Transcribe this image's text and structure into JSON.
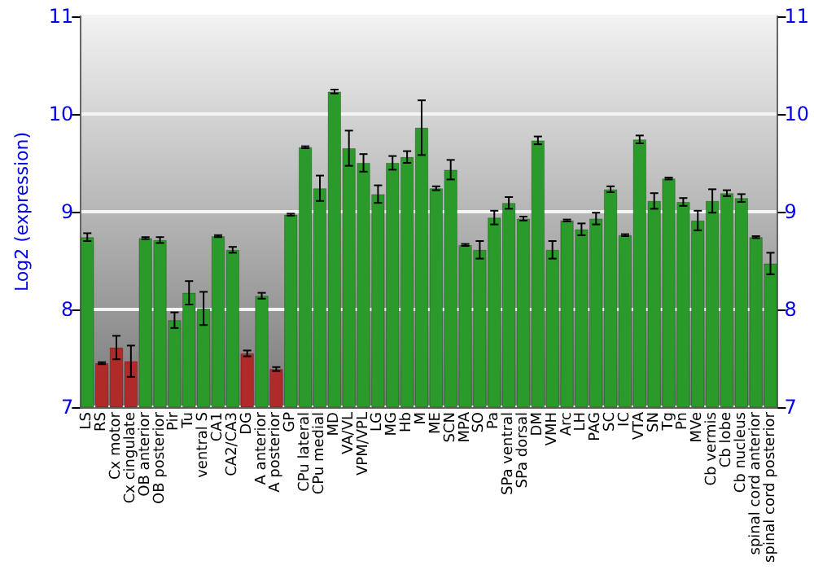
{
  "chart_data": {
    "type": "bar",
    "ylabel": "Log2 (expression)",
    "categories": [
      "LS",
      "RS",
      "Cx motor",
      "Cx cingulate",
      "OB anterior",
      "OB posterior",
      "Pir",
      "Tu",
      "ventral S",
      "CA1",
      "CA2/CA3",
      "DG",
      "A anterior",
      "A posterior",
      "GP",
      "CPu lateral",
      "CPu medial",
      "MD",
      "VA/VL",
      "VPM/VPL",
      "LG",
      "MG",
      "Hb",
      "M",
      "ME",
      "SCN",
      "MPA",
      "SO",
      "Pa",
      "SPa ventral",
      "SPa dorsal",
      "DM",
      "VMH",
      "Arc",
      "LH",
      "PAG",
      "SC",
      "IC",
      "VTA",
      "SN",
      "Tg",
      "Pn",
      "MVe",
      "Cb vermis",
      "Cb lobe",
      "Cb nucleus",
      "spinal cord anterior",
      "spinal cord posterior"
    ],
    "values": [
      8.74,
      7.45,
      7.61,
      7.47,
      8.73,
      8.71,
      7.89,
      8.17,
      8.01,
      8.75,
      8.61,
      7.55,
      8.14,
      7.39,
      8.97,
      9.66,
      9.24,
      10.23,
      9.65,
      9.5,
      9.18,
      9.5,
      9.56,
      9.86,
      9.24,
      9.43,
      8.66,
      8.61,
      8.94,
      9.09,
      8.93,
      9.73,
      8.61,
      8.91,
      8.82,
      8.93,
      9.23,
      8.76,
      9.74,
      9.11,
      9.34,
      9.1,
      8.91,
      9.11,
      9.19,
      9.14,
      8.74,
      8.47
    ],
    "errors": [
      0.04,
      0.01,
      0.12,
      0.16,
      0.01,
      0.03,
      0.08,
      0.12,
      0.17,
      0.01,
      0.03,
      0.03,
      0.03,
      0.02,
      0.01,
      0.01,
      0.13,
      0.02,
      0.18,
      0.09,
      0.09,
      0.07,
      0.06,
      0.28,
      0.02,
      0.1,
      0.01,
      0.09,
      0.07,
      0.06,
      0.02,
      0.04,
      0.09,
      0.01,
      0.06,
      0.06,
      0.03,
      0.01,
      0.04,
      0.08,
      0.01,
      0.04,
      0.1,
      0.12,
      0.03,
      0.04,
      0.01,
      0.11
    ],
    "colors": [
      "#2a9a2a",
      "#b02a2a",
      "#b02a2a",
      "#b02a2a",
      "#2a9a2a",
      "#2a9a2a",
      "#2a9a2a",
      "#2a9a2a",
      "#2a9a2a",
      "#2a9a2a",
      "#2a9a2a",
      "#b02a2a",
      "#2a9a2a",
      "#b02a2a",
      "#2a9a2a",
      "#2a9a2a",
      "#2a9a2a",
      "#2a9a2a",
      "#2a9a2a",
      "#2a9a2a",
      "#2a9a2a",
      "#2a9a2a",
      "#2a9a2a",
      "#2a9a2a",
      "#2a9a2a",
      "#2a9a2a",
      "#2a9a2a",
      "#2a9a2a",
      "#2a9a2a",
      "#2a9a2a",
      "#2a9a2a",
      "#2a9a2a",
      "#2a9a2a",
      "#2a9a2a",
      "#2a9a2a",
      "#2a9a2a",
      "#2a9a2a",
      "#2a9a2a",
      "#2a9a2a",
      "#2a9a2a",
      "#2a9a2a",
      "#2a9a2a",
      "#2a9a2a",
      "#2a9a2a",
      "#2a9a2a",
      "#2a9a2a",
      "#2a9a2a",
      "#2a9a2a"
    ],
    "ylim": [
      7,
      11
    ],
    "yticks": [
      7,
      8,
      9,
      10,
      11
    ],
    "y2lim": [
      7,
      11
    ],
    "y2ticks": [
      7,
      8,
      9,
      10,
      11
    ],
    "grid": "y"
  }
}
